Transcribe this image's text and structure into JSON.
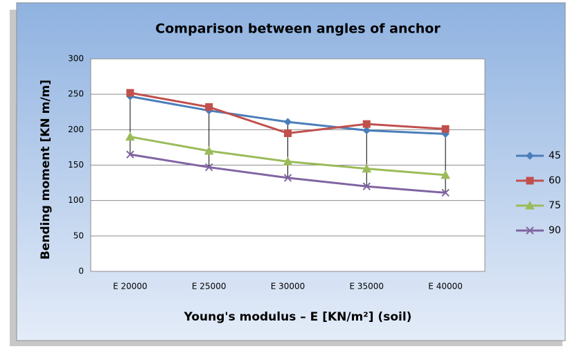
{
  "chart_data": {
    "type": "line",
    "title": "Comparison between angles of anchor",
    "x_label": "Young's modulus – E [KN/m²] (soil)",
    "y_label": "Bending moment [KN m/m]",
    "categories": [
      "E 20000",
      "E 25000",
      "E 30000",
      "E 35000",
      "E 40000"
    ],
    "series": [
      {
        "name": "45",
        "color": "#4a7ebb",
        "marker": "diamond",
        "values": [
          247,
          227,
          211,
          199,
          194
        ]
      },
      {
        "name": "60",
        "color": "#c0504d",
        "marker": "square",
        "values": [
          252,
          232,
          195,
          208,
          201
        ]
      },
      {
        "name": "75",
        "color": "#9bbb59",
        "marker": "triangle",
        "values": [
          190,
          170,
          155,
          145,
          136
        ]
      },
      {
        "name": "90",
        "color": "#8064a2",
        "marker": "x",
        "values": [
          165,
          147,
          132,
          120,
          111
        ]
      }
    ],
    "ylim": [
      0,
      300
    ],
    "yticks": [
      0,
      50,
      100,
      150,
      200,
      250,
      300
    ],
    "grid": true,
    "high_low_lines": true,
    "legend": "right"
  }
}
